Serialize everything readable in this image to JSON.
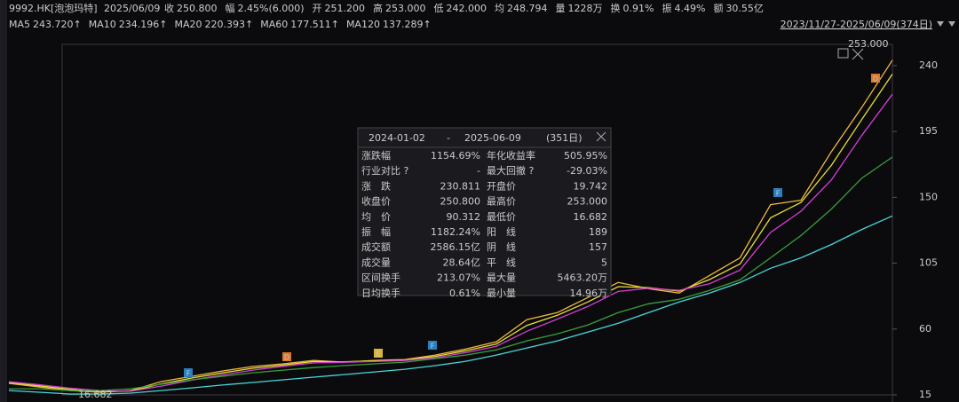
{
  "header": {
    "code": "9992.HK[泡泡玛特]",
    "date": "2025/06/09",
    "fields": [
      {
        "label": "收",
        "value": "250.800",
        "color": "#f23d3d"
      },
      {
        "label": "幅",
        "value": "2.45%(6.000)",
        "color": "#f23d3d"
      },
      {
        "label": "开",
        "value": "251.200",
        "color": "#f23d3d"
      },
      {
        "label": "高",
        "value": "253.000",
        "color": "#f23d3d"
      },
      {
        "label": "低",
        "value": "242.000",
        "color": "#2fc24a"
      },
      {
        "label": "均",
        "value": "248.794",
        "color": "#f23d3d"
      },
      {
        "label": "量",
        "value": "1228万",
        "color": "#dddddd"
      },
      {
        "label": "换",
        "value": "0.91%",
        "color": "#dddddd"
      },
      {
        "label": "振",
        "value": "4.49%",
        "color": "#dddddd"
      },
      {
        "label": "额",
        "value": "30.55亿",
        "color": "#dddddd"
      }
    ],
    "range": "2023/11/27-2025/06/09(374日)"
  },
  "chart_data": {
    "type": "line",
    "categories": [
      null,
      null,
      null,
      null,
      null,
      null,
      null,
      null,
      null,
      null,
      null,
      null,
      null,
      null,
      null,
      null,
      null,
      null,
      null,
      null,
      null,
      null,
      null,
      null,
      null,
      null,
      null,
      null,
      null,
      null
    ],
    "ylim": [
      15,
      254.5
    ],
    "yticks": [
      15,
      60,
      105,
      150,
      195,
      240
    ],
    "high_label": "253.000",
    "low_label": "16.682",
    "series": [
      {
        "name": "MA5",
        "legend_label": "243.720↑",
        "color": "#f0b93a",
        "values": [
          22.9,
          20.4,
          18.0,
          16.8,
          18.0,
          24.1,
          27.7,
          31.3,
          34.4,
          36.2,
          38.6,
          37.4,
          38.6,
          39.2,
          42.2,
          46.4,
          51.3,
          66.4,
          71.2,
          81.5,
          91.8,
          87.6,
          84.6,
          96.6,
          108.7,
          145.0,
          148.0,
          181.3,
          211.6,
          243.7
        ]
      },
      {
        "name": "MA10",
        "legend_label": "234.196↑",
        "color": "#e6e03a",
        "values": [
          23.5,
          21.2,
          18.8,
          17.3,
          17.6,
          22.5,
          26.5,
          30.0,
          33.2,
          35.4,
          37.8,
          37.6,
          38.2,
          38.9,
          41.3,
          45.2,
          49.8,
          62.5,
          69.4,
          78.5,
          89.0,
          88.3,
          85.9,
          93.8,
          104.5,
          136.0,
          146.5,
          172.0,
          203.4,
          234.2
        ]
      },
      {
        "name": "MA20",
        "legend_label": "220.393↑",
        "color": "#d43fd4",
        "values": [
          24.0,
          22.0,
          19.6,
          17.9,
          17.5,
          21.0,
          25.1,
          28.6,
          31.9,
          34.5,
          36.9,
          37.3,
          37.8,
          38.5,
          40.4,
          43.9,
          48.2,
          58.5,
          66.8,
          75.4,
          85.7,
          87.9,
          86.5,
          91.0,
          100.3,
          126.0,
          140.5,
          162.0,
          192.5,
          220.4
        ]
      },
      {
        "name": "MA60",
        "legend_label": "177.511↑",
        "color": "#3a9e3a",
        "values": [
          19.2,
          19.2,
          18.0,
          18.0,
          19.2,
          22.3,
          25.3,
          27.7,
          30.1,
          31.9,
          33.7,
          35.0,
          36.2,
          37.4,
          39.8,
          42.2,
          45.8,
          51.9,
          56.7,
          62.8,
          71.2,
          77.3,
          80.3,
          86.4,
          93.6,
          108.7,
          123.9,
          142.0,
          163.2,
          177.5
        ]
      },
      {
        "name": "MA120",
        "legend_label": "137.289↑",
        "color": "#4ad6d6",
        "values": [
          18.0,
          16.8,
          15.6,
          15.6,
          16.2,
          18.0,
          19.8,
          21.7,
          23.5,
          25.3,
          27.1,
          28.9,
          30.7,
          32.5,
          35.0,
          38.0,
          42.2,
          47.1,
          51.9,
          57.9,
          64.0,
          71.2,
          78.5,
          84.6,
          91.8,
          101.5,
          108.7,
          117.8,
          128.1,
          137.3
        ]
      }
    ]
  },
  "markers": [
    "F",
    "D",
    "E",
    "F",
    "F",
    "D"
  ],
  "panel": {
    "start": "2024-01-02",
    "sep": "-",
    "end": "2025-06-09",
    "days": "(351日)",
    "rows": [
      [
        "涨跌幅",
        "1154.69%",
        "年化收益率",
        "505.95%"
      ],
      [
        "行业对比 ?",
        "-",
        "最大回撤 ?",
        "-29.03%"
      ],
      [
        "涨　跌",
        "230.811",
        "开盘价",
        "19.742"
      ],
      [
        "收盘价",
        "250.800",
        "最高价",
        "253.000"
      ],
      [
        "均　价",
        "90.312",
        "最低价",
        "16.682"
      ],
      [
        "振　幅",
        "1182.24%",
        "阳　线",
        "189"
      ],
      [
        "成交额",
        "2586.15亿",
        "阴　线",
        "157"
      ],
      [
        "成交量",
        "28.64亿",
        "平　线",
        "5"
      ],
      [
        "区间换手",
        "213.07%",
        "最大量",
        "5463.20万"
      ],
      [
        "日均换手",
        "0.61%",
        "最小量",
        "14.96万"
      ]
    ]
  }
}
